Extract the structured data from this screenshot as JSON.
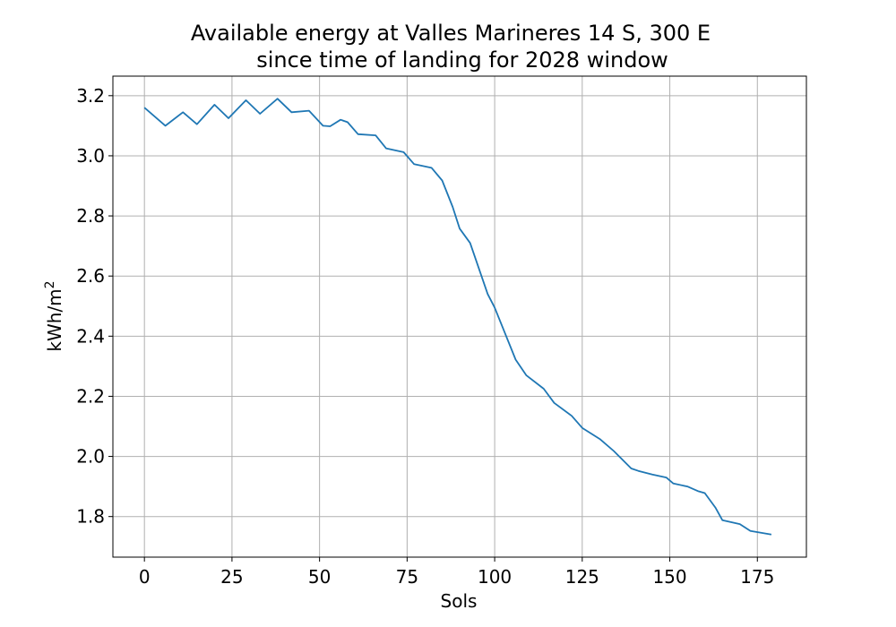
{
  "chart_data": {
    "type": "line",
    "title_lines": [
      "Available energy at Valles Marineres 14 S, 300 E",
      "since time of landing for 2028 window"
    ],
    "xlabel": "Sols",
    "ylabel_base": "kWh/m",
    "ylabel_sup": "2",
    "xlim": [
      -9,
      189
    ],
    "ylim": [
      1.665,
      3.265
    ],
    "xticks": [
      0,
      25,
      50,
      75,
      100,
      125,
      150,
      175
    ],
    "yticks": [
      1.8,
      2.0,
      2.2,
      2.4,
      2.6,
      2.8,
      3.0,
      3.2
    ],
    "ytick_labels": [
      "1.8",
      "2.0",
      "2.2",
      "2.4",
      "2.6",
      "2.8",
      "3.0",
      "3.2"
    ],
    "grid": true,
    "line_color": "#1f77b4",
    "series": [
      {
        "x": [
          0,
          6,
          11,
          15,
          20,
          24,
          29,
          33,
          38,
          42,
          47,
          51,
          53,
          56,
          58,
          61,
          66,
          69,
          74,
          77,
          82,
          85,
          88,
          90,
          93,
          98,
          100,
          106,
          109,
          114,
          117,
          122,
          125,
          130,
          134,
          139,
          141,
          145,
          149,
          151,
          155,
          158,
          160,
          163,
          165,
          170,
          173,
          179
        ],
        "y": [
          3.16,
          3.1,
          3.145,
          3.105,
          3.17,
          3.125,
          3.185,
          3.14,
          3.19,
          3.145,
          3.15,
          3.1,
          3.098,
          3.12,
          3.112,
          3.072,
          3.068,
          3.025,
          3.012,
          2.972,
          2.96,
          2.918,
          2.83,
          2.758,
          2.71,
          2.54,
          2.495,
          2.322,
          2.27,
          2.225,
          2.178,
          2.135,
          2.095,
          2.058,
          2.018,
          1.96,
          1.952,
          1.94,
          1.93,
          1.91,
          1.9,
          1.885,
          1.878,
          1.83,
          1.788,
          1.775,
          1.752,
          1.74
        ]
      }
    ]
  }
}
